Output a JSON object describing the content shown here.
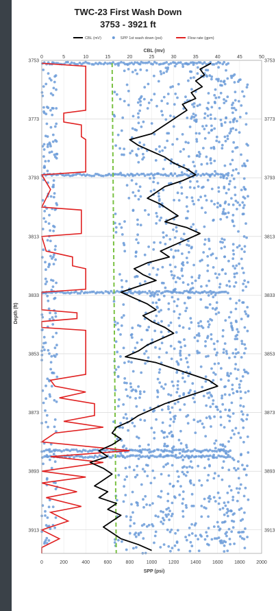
{
  "chart_data": {
    "type": "scatter",
    "title": "TWC-23 First Wash Down",
    "subtitle": "3753 - 3921 ft",
    "xlabel_bottom": "SPP (psi)",
    "xlabel_top": "CBL (mv)",
    "ylabel": "Depth (ft)",
    "x_bottom_range": [
      0,
      2000
    ],
    "x_bottom_ticks": [
      0,
      200,
      400,
      600,
      800,
      1000,
      1200,
      1400,
      1600,
      1800,
      2000
    ],
    "x_top_range": [
      0,
      50
    ],
    "x_top_ticks": [
      0,
      5,
      10,
      15,
      20,
      25,
      30,
      35,
      40,
      45,
      50
    ],
    "y_range": [
      3753,
      3921
    ],
    "y_ticks": [
      3753,
      3773,
      3793,
      3813,
      3833,
      3853,
      3873,
      3893,
      3913
    ],
    "y_reversed": true,
    "grid": true,
    "legend_position": "top",
    "legend": [
      {
        "label": "CBL (mV)",
        "color": "#000000",
        "kind": "line"
      },
      {
        "label": "SPP 1st wash down (psi)",
        "color": "#6b9bd8",
        "kind": "marker"
      },
      {
        "label": "Flow rate (gpm)",
        "color": "#e02020",
        "kind": "line"
      }
    ],
    "reference_line": {
      "x_spp": 640,
      "color": "#7ac142",
      "style": "dashed"
    },
    "series": [
      {
        "name": "CBL (mV)",
        "axis": "top",
        "color": "#000000",
        "points": [
          [
            38.5,
            3754
          ],
          [
            36,
            3756
          ],
          [
            37,
            3758
          ],
          [
            35,
            3760
          ],
          [
            36.5,
            3762
          ],
          [
            34,
            3764
          ],
          [
            35,
            3766
          ],
          [
            32,
            3768
          ],
          [
            33,
            3770
          ],
          [
            31,
            3772
          ],
          [
            29,
            3774
          ],
          [
            27,
            3776
          ],
          [
            25,
            3778
          ],
          [
            20,
            3780
          ],
          [
            22,
            3782
          ],
          [
            25,
            3784
          ],
          [
            28,
            3786
          ],
          [
            30,
            3788
          ],
          [
            33,
            3790
          ],
          [
            35,
            3792
          ],
          [
            32,
            3794
          ],
          [
            28,
            3796
          ],
          [
            26,
            3798
          ],
          [
            24,
            3800
          ],
          [
            27,
            3802
          ],
          [
            29,
            3804
          ],
          [
            31,
            3806
          ],
          [
            28,
            3808
          ],
          [
            33,
            3810
          ],
          [
            36,
            3812
          ],
          [
            33,
            3814
          ],
          [
            30,
            3816
          ],
          [
            27,
            3818
          ],
          [
            29,
            3820
          ],
          [
            24,
            3822
          ],
          [
            21,
            3824
          ],
          [
            23,
            3826
          ],
          [
            26,
            3828
          ],
          [
            22,
            3830
          ],
          [
            18,
            3832
          ],
          [
            21,
            3834
          ],
          [
            24,
            3836
          ],
          [
            26,
            3838
          ],
          [
            23,
            3840
          ],
          [
            25,
            3842
          ],
          [
            28,
            3844
          ],
          [
            30,
            3846
          ],
          [
            27,
            3848
          ],
          [
            24,
            3850
          ],
          [
            22,
            3852
          ],
          [
            19,
            3854
          ],
          [
            26,
            3856
          ],
          [
            30,
            3858
          ],
          [
            34,
            3860
          ],
          [
            38,
            3862
          ],
          [
            40,
            3864
          ],
          [
            36,
            3866
          ],
          [
            32,
            3868
          ],
          [
            28,
            3870
          ],
          [
            25,
            3872
          ],
          [
            22,
            3874
          ],
          [
            20,
            3876
          ],
          [
            17,
            3878
          ],
          [
            16,
            3880
          ],
          [
            18,
            3882
          ],
          [
            16,
            3884
          ],
          [
            13,
            3886
          ],
          [
            15,
            3888
          ],
          [
            11,
            3890
          ],
          [
            14,
            3892
          ],
          [
            16,
            3894
          ],
          [
            14,
            3896
          ],
          [
            12,
            3898
          ],
          [
            15,
            3900
          ],
          [
            13,
            3902
          ],
          [
            17,
            3904
          ],
          [
            15,
            3906
          ],
          [
            18,
            3908
          ],
          [
            16,
            3910
          ],
          [
            14,
            3912
          ],
          [
            16,
            3914
          ],
          [
            18,
            3916
          ],
          [
            22,
            3918
          ],
          [
            25,
            3920
          ]
        ]
      },
      {
        "name": "Flow rate (gpm)",
        "axis": "top",
        "color": "#e02020",
        "points": [
          [
            0,
            3754
          ],
          [
            10,
            3755
          ],
          [
            10,
            3770
          ],
          [
            5,
            3771
          ],
          [
            5,
            3774
          ],
          [
            9,
            3775
          ],
          [
            9,
            3779
          ],
          [
            10,
            3780
          ],
          [
            10,
            3791
          ],
          [
            0,
            3792
          ],
          [
            2,
            3797
          ],
          [
            0,
            3803
          ],
          [
            9,
            3804
          ],
          [
            9,
            3812
          ],
          [
            0,
            3813
          ],
          [
            1,
            3818
          ],
          [
            7,
            3820
          ],
          [
            7,
            3823
          ],
          [
            10,
            3824
          ],
          [
            10,
            3831
          ],
          [
            0,
            3832
          ],
          [
            0,
            3838
          ],
          [
            8,
            3839
          ],
          [
            8,
            3841
          ],
          [
            0,
            3842
          ],
          [
            0,
            3844
          ],
          [
            10,
            3845
          ],
          [
            10,
            3860
          ],
          [
            2,
            3862
          ],
          [
            3,
            3864
          ],
          [
            10,
            3866
          ],
          [
            4,
            3868
          ],
          [
            12,
            3870
          ],
          [
            12,
            3874
          ],
          [
            5,
            3876
          ],
          [
            14,
            3878
          ],
          [
            3,
            3880
          ],
          [
            0,
            3883
          ],
          [
            20,
            3886
          ],
          [
            2,
            3888
          ],
          [
            14,
            3890
          ],
          [
            0,
            3893
          ],
          [
            10,
            3895
          ],
          [
            0,
            3897
          ],
          [
            8,
            3900
          ],
          [
            1,
            3902
          ],
          [
            9,
            3905
          ],
          [
            2,
            3907
          ],
          [
            6,
            3910
          ],
          [
            0,
            3913
          ],
          [
            4,
            3916
          ],
          [
            0,
            3919
          ],
          [
            0,
            3921
          ]
        ]
      },
      {
        "name": "SPP 1st wash down (psi)",
        "axis": "bottom",
        "color": "#6b9bd8",
        "generated_from": {
          "x_range": [
            650,
            1880
          ],
          "y_range": [
            3754,
            3921
          ],
          "count": 1400,
          "also_near_edges": true
        }
      }
    ]
  }
}
